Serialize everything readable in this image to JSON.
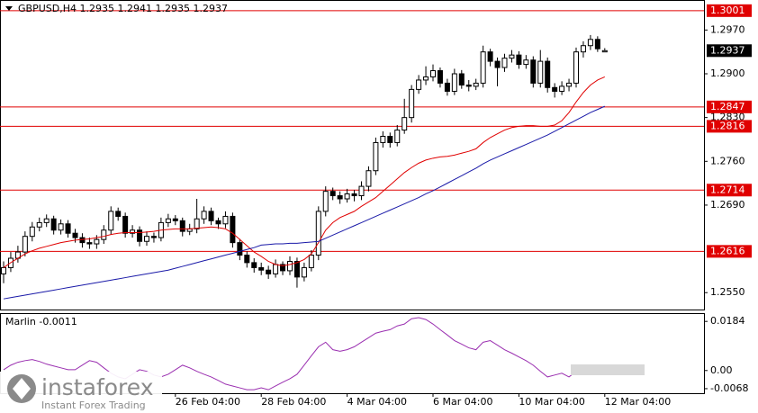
{
  "chart_data": {
    "type": "candlestick",
    "symbol": "GBPUSD,H4",
    "categories": [
      null,
      null,
      null,
      null,
      null,
      null,
      null,
      null,
      null,
      null,
      null,
      null,
      null,
      null,
      null,
      null,
      null,
      null,
      null,
      null,
      null,
      null,
      null,
      null,
      "26 Feb 04:00",
      null,
      null,
      null,
      null,
      null,
      null,
      null,
      null,
      null,
      null,
      null,
      "28 Feb 04:00",
      null,
      null,
      null,
      null,
      null,
      null,
      null,
      null,
      null,
      null,
      null,
      "4 Mar 04:00",
      null,
      null,
      null,
      null,
      null,
      null,
      null,
      null,
      null,
      null,
      null,
      "6 Mar 04:00",
      null,
      null,
      null,
      null,
      null,
      null,
      null,
      null,
      null,
      null,
      null,
      "10 Mar 04:00",
      null,
      null,
      null,
      null,
      null,
      null,
      null,
      null,
      null,
      null,
      null,
      "12 Mar 04:00"
    ],
    "ohlc": [
      [
        1.258,
        1.26,
        1.2565,
        1.259
      ],
      [
        1.259,
        1.2615,
        1.2583,
        1.2605
      ],
      [
        1.2605,
        1.2625,
        1.2598,
        1.2615
      ],
      [
        1.2615,
        1.2648,
        1.2608,
        1.264
      ],
      [
        1.264,
        1.2663,
        1.2632,
        1.2655
      ],
      [
        1.2655,
        1.267,
        1.2648,
        1.2662
      ],
      [
        1.2662,
        1.2675,
        1.2655,
        1.2668
      ],
      [
        1.2668,
        1.2673,
        1.2643,
        1.265
      ],
      [
        1.265,
        1.2667,
        1.2643,
        1.266
      ],
      [
        1.266,
        1.2666,
        1.2638,
        1.2645
      ],
      [
        1.2645,
        1.2652,
        1.263,
        1.2638
      ],
      [
        1.2638,
        1.2645,
        1.2622,
        1.263
      ],
      [
        1.263,
        1.2638,
        1.262,
        1.2628
      ],
      [
        1.2628,
        1.2642,
        1.262,
        1.2635
      ],
      [
        1.2635,
        1.2658,
        1.2628,
        1.265
      ],
      [
        1.265,
        1.2688,
        1.2643,
        1.268
      ],
      [
        1.268,
        1.2686,
        1.2665,
        1.2672
      ],
      [
        1.2672,
        1.2678,
        1.2638,
        1.2645
      ],
      [
        1.2645,
        1.2658,
        1.2638,
        1.265
      ],
      [
        1.265,
        1.2656,
        1.2624,
        1.2632
      ],
      [
        1.2632,
        1.2648,
        1.2625,
        1.264
      ],
      [
        1.264,
        1.2646,
        1.263,
        1.2638
      ],
      [
        1.2638,
        1.267,
        1.2632,
        1.2662
      ],
      [
        1.2662,
        1.2676,
        1.2655,
        1.2668
      ],
      [
        1.2668,
        1.2674,
        1.2658,
        1.2665
      ],
      [
        1.2665,
        1.267,
        1.264,
        1.2648
      ],
      [
        1.2648,
        1.266,
        1.2642,
        1.2652
      ],
      [
        1.2652,
        1.27,
        1.2645,
        1.2668
      ],
      [
        1.2668,
        1.2688,
        1.266,
        1.268
      ],
      [
        1.268,
        1.2686,
        1.2658,
        1.2665
      ],
      [
        1.2665,
        1.267,
        1.2652,
        1.266
      ],
      [
        1.266,
        1.268,
        1.2653,
        1.2672
      ],
      [
        1.2672,
        1.2678,
        1.2622,
        1.263
      ],
      [
        1.263,
        1.2636,
        1.2602,
        1.261
      ],
      [
        1.261,
        1.2616,
        1.259,
        1.2598
      ],
      [
        1.2598,
        1.2605,
        1.2582,
        1.259
      ],
      [
        1.259,
        1.2598,
        1.2578,
        1.2586
      ],
      [
        1.2586,
        1.2593,
        1.2572,
        1.258
      ],
      [
        1.258,
        1.2603,
        1.2574,
        1.2595
      ],
      [
        1.2595,
        1.26,
        1.2578,
        1.2585
      ],
      [
        1.2585,
        1.2608,
        1.2578,
        1.26
      ],
      [
        1.26,
        1.2606,
        1.2558,
        1.2575
      ],
      [
        1.2575,
        1.2598,
        1.2568,
        1.259
      ],
      [
        1.259,
        1.2618,
        1.2584,
        1.261
      ],
      [
        1.261,
        1.2688,
        1.2602,
        1.268
      ],
      [
        1.268,
        1.272,
        1.2672,
        1.2712
      ],
      [
        1.2712,
        1.2718,
        1.2698,
        1.2705
      ],
      [
        1.2705,
        1.2712,
        1.2692,
        1.27
      ],
      [
        1.27,
        1.2716,
        1.2694,
        1.2708
      ],
      [
        1.2708,
        1.2714,
        1.2696,
        1.2705
      ],
      [
        1.2705,
        1.2728,
        1.2698,
        1.272
      ],
      [
        1.272,
        1.2752,
        1.2712,
        1.2745
      ],
      [
        1.2745,
        1.2798,
        1.2738,
        1.279
      ],
      [
        1.279,
        1.2808,
        1.2782,
        1.28
      ],
      [
        1.28,
        1.2806,
        1.2782,
        1.279
      ],
      [
        1.279,
        1.2818,
        1.2784,
        1.281
      ],
      [
        1.281,
        1.286,
        1.2804,
        1.283
      ],
      [
        1.283,
        1.2882,
        1.2822,
        1.2875
      ],
      [
        1.2875,
        1.2898,
        1.2868,
        1.289
      ],
      [
        1.289,
        1.2912,
        1.2882,
        1.2895
      ],
      [
        1.2895,
        1.2915,
        1.2888,
        1.2905
      ],
      [
        1.2905,
        1.291,
        1.2878,
        1.2885
      ],
      [
        1.2885,
        1.2892,
        1.2865,
        1.2872
      ],
      [
        1.2872,
        1.2908,
        1.2866,
        1.29
      ],
      [
        1.29,
        1.2906,
        1.2876,
        1.2882
      ],
      [
        1.2882,
        1.289,
        1.2872,
        1.288
      ],
      [
        1.288,
        1.2892,
        1.2874,
        1.2885
      ],
      [
        1.2885,
        1.2945,
        1.2878,
        1.2935
      ],
      [
        1.2935,
        1.294,
        1.2912,
        1.292
      ],
      [
        1.292,
        1.2926,
        1.288,
        1.291
      ],
      [
        1.291,
        1.2932,
        1.2903,
        1.2925
      ],
      [
        1.2925,
        1.2938,
        1.2918,
        1.293
      ],
      [
        1.293,
        1.2936,
        1.2908,
        1.2915
      ],
      [
        1.2915,
        1.293,
        1.2908,
        1.2922
      ],
      [
        1.2922,
        1.2928,
        1.2878,
        1.2885
      ],
      [
        1.2885,
        1.2938,
        1.2878,
        1.292
      ],
      [
        1.292,
        1.2926,
        1.287,
        1.2878
      ],
      [
        1.2878,
        1.2885,
        1.2862,
        1.2872
      ],
      [
        1.2872,
        1.2888,
        1.2866,
        1.288
      ],
      [
        1.288,
        1.2892,
        1.2872,
        1.2885
      ],
      [
        1.2885,
        1.2942,
        1.2878,
        1.2935
      ],
      [
        1.2935,
        1.2952,
        1.2926,
        1.2945
      ],
      [
        1.2945,
        1.2962,
        1.2938,
        1.2955
      ],
      [
        1.2955,
        1.296,
        1.2935,
        1.294
      ],
      [
        1.2935,
        1.2941,
        1.2935,
        1.2937
      ]
    ],
    "candle_colors": {
      "up": "#ffffff",
      "down": "#000000",
      "outline": "#000000"
    },
    "series": [
      {
        "color": "#e00000",
        "values": [
          1.259,
          1.2598,
          1.2605,
          1.2612,
          1.2617,
          1.2621,
          1.2624,
          1.2627,
          1.263,
          1.2632,
          1.2634,
          1.2635,
          1.2636,
          1.2638,
          1.264,
          1.2643,
          1.2645,
          1.2646,
          1.2646,
          1.2646,
          1.2647,
          1.2648,
          1.265,
          1.2651,
          1.2652,
          1.2652,
          1.2652,
          1.2653,
          1.2654,
          1.2655,
          1.2654,
          1.2652,
          1.2645,
          1.2635,
          1.2625,
          1.2615,
          1.2608,
          1.26,
          1.2595,
          1.2593,
          1.2595,
          1.2598,
          1.2603,
          1.2612,
          1.263,
          1.265,
          1.2662,
          1.267,
          1.2675,
          1.268,
          1.2688,
          1.2695,
          1.2702,
          1.2712,
          1.2722,
          1.2732,
          1.2742,
          1.275,
          1.2757,
          1.2762,
          1.2765,
          1.2767,
          1.2768,
          1.277,
          1.2773,
          1.2776,
          1.278,
          1.279,
          1.2798,
          1.2804,
          1.281,
          1.2814,
          1.2816,
          1.2817,
          1.2817,
          1.2816,
          1.2816,
          1.2818,
          1.2825,
          1.2838,
          1.2855,
          1.287,
          1.2882,
          1.289,
          1.2895
        ]
      },
      {
        "color": "#1a1aa8",
        "values": [
          1.254,
          1.2542,
          1.2544,
          1.2546,
          1.2548,
          1.255,
          1.2552,
          1.2554,
          1.2556,
          1.2558,
          1.256,
          1.2562,
          1.2564,
          1.2566,
          1.2568,
          1.257,
          1.2572,
          1.2574,
          1.2576,
          1.2578,
          1.258,
          1.2582,
          1.2584,
          1.2586,
          1.2589,
          1.2592,
          1.2595,
          1.2598,
          1.2601,
          1.2604,
          1.2607,
          1.261,
          1.2613,
          1.2616,
          1.2619,
          1.2622,
          1.2626,
          1.2627,
          1.2628,
          1.2628,
          1.2629,
          1.2629,
          1.263,
          1.2631,
          1.2632,
          1.2637,
          1.2642,
          1.2647,
          1.2652,
          1.2657,
          1.2662,
          1.2667,
          1.2672,
          1.2677,
          1.2682,
          1.2687,
          1.2692,
          1.2697,
          1.2702,
          1.2708,
          1.2713,
          1.2719,
          1.2725,
          1.2731,
          1.2737,
          1.2743,
          1.2749,
          1.2756,
          1.2762,
          1.2767,
          1.2772,
          1.2777,
          1.2782,
          1.2787,
          1.2792,
          1.2797,
          1.2802,
          1.2808,
          1.2814,
          1.282,
          1.2826,
          1.2832,
          1.2838,
          1.2843,
          1.2848
        ]
      }
    ],
    "levels": [
      1.3001,
      1.2847,
      1.2816,
      1.2714,
      1.2616
    ],
    "level_color": "#e00000",
    "ylim": [
      1.2523,
      1.3018
    ],
    "yticks": [
      {
        "value": 1.255,
        "label": "1.2550"
      },
      {
        "value": 1.269,
        "label": "1.2690"
      },
      {
        "value": 1.276,
        "label": "1.2760"
      },
      {
        "value": 1.283,
        "label": "1.2830"
      },
      {
        "value": 1.29,
        "label": "1.2900"
      },
      {
        "value": 1.297,
        "label": "1.2970"
      }
    ],
    "indicator": {
      "name": "Marlin",
      "color": "#9a2fb0",
      "values": [
        0.0003,
        0.002,
        0.0031,
        0.0037,
        0.0041,
        0.0034,
        0.0024,
        0.0017,
        0.001,
        0.0003,
        0.0003,
        0.002,
        0.0037,
        0.0031,
        0.001,
        -0.001,
        -0.0024,
        -0.0031,
        -0.0014,
        0.0003,
        -0.0003,
        -0.0017,
        -0.0024,
        -0.0014,
        0.0003,
        0.002,
        0.001,
        -0.0003,
        -0.0014,
        -0.0024,
        -0.0037,
        -0.0051,
        -0.0058,
        -0.0065,
        -0.0072,
        -0.0072,
        -0.0065,
        -0.0072,
        -0.0058,
        -0.0044,
        -0.0031,
        -0.0014,
        0.002,
        0.0055,
        0.0089,
        0.0106,
        0.0078,
        0.0072,
        0.0078,
        0.0089,
        0.0106,
        0.0123,
        0.014,
        0.0147,
        0.0153,
        0.0167,
        0.0174,
        0.0194,
        0.0198,
        0.0191,
        0.0174,
        0.0153,
        0.0133,
        0.0112,
        0.0099,
        0.0085,
        0.0078,
        0.0106,
        0.0112,
        0.0095,
        0.0078,
        0.0065,
        0.0051,
        0.0037,
        0.002,
        -0.0003,
        -0.0024,
        -0.0017,
        -0.001,
        -0.0024,
        -0.0003,
        0.001,
        0.0003,
        -0.0003,
        -0.0011
      ],
      "ylim": [
        -0.0085,
        0.0215
      ],
      "yticks": [
        0.0184,
        {
          "value": 0,
          "label": "0.00"
        },
        -0.0068
      ]
    },
    "watermark": {
      "brand": "instaforex",
      "tagline": "Instant Forex Trading"
    }
  }
}
